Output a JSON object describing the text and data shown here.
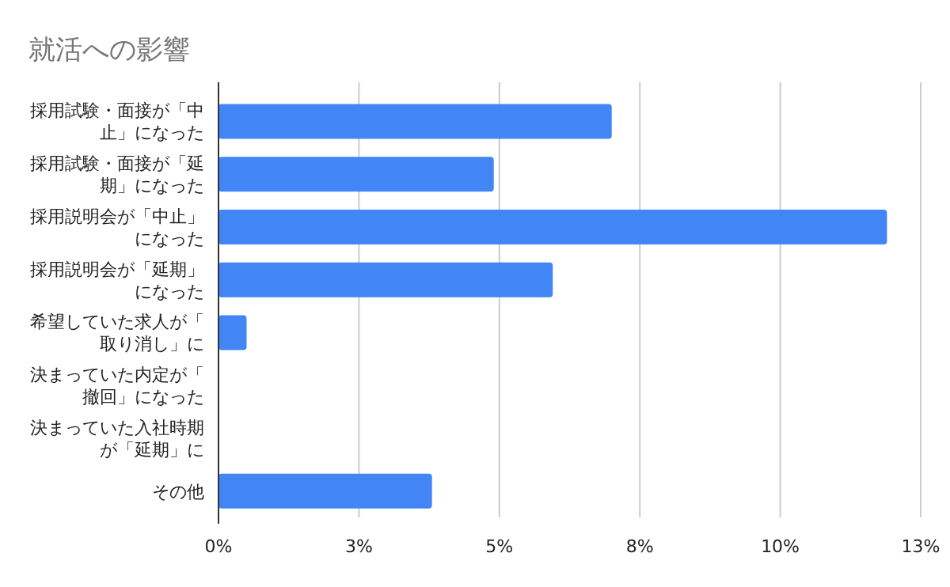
{
  "chart_data": {
    "type": "bar",
    "orientation": "horizontal",
    "title": "就活への影響",
    "categories": [
      "採用試験・面接が「中止」になった",
      "採用試験・面接が「延期」になった",
      "採用説明会が「中止」になった",
      "採用説明会が「延期」になった",
      "希望していた求人が「取り消し」に",
      "決まっていた内定が「撤回」になった",
      "決まっていた入社時期が「延期」に",
      "その他"
    ],
    "values": [
      7.0,
      4.9,
      11.9,
      5.95,
      0.5,
      0,
      0,
      3.8
    ],
    "color": "#4285f4",
    "xlim": [
      0,
      12.5
    ],
    "xticks": [
      {
        "value": 0,
        "label": "0%"
      },
      {
        "value": 2.5,
        "label": "3%"
      },
      {
        "value": 5,
        "label": "5%"
      },
      {
        "value": 7.5,
        "label": "8%"
      },
      {
        "value": 10,
        "label": "10%"
      },
      {
        "value": 12.5,
        "label": "13%"
      }
    ],
    "grid": "x"
  }
}
